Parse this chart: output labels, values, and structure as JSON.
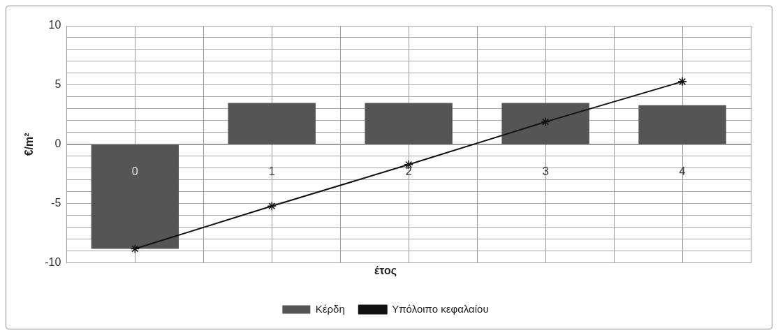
{
  "chart_data": {
    "type": "bar",
    "xlabel": "έτος",
    "ylabel": "€/m²",
    "categories": [
      "0",
      "1",
      "2",
      "3",
      "4"
    ],
    "series": [
      {
        "name": "Κέρδη",
        "color": "#555555",
        "values": [
          -8.8,
          3.5,
          3.5,
          3.5,
          3.3
        ]
      },
      {
        "name": "Υπόλοιπο κεφαλαίου",
        "type": "line",
        "color": "#111111",
        "values": [
          -8.8,
          -5.2,
          -1.7,
          1.9,
          5.3
        ],
        "marker": "cross"
      }
    ],
    "ylim": [
      -10,
      10
    ],
    "yticks": [
      -10,
      {
        "value": -9,
        "label": null
      },
      {
        "value": -8,
        "label": null
      },
      {
        "value": -7,
        "label": null
      },
      {
        "value": -6,
        "label": null
      },
      -5,
      {
        "value": -4,
        "label": null
      },
      {
        "value": -3,
        "label": null
      },
      {
        "value": -2,
        "label": null
      },
      {
        "value": -1,
        "label": null
      },
      0,
      {
        "value": 1,
        "label": null
      },
      {
        "value": 2,
        "label": null
      },
      {
        "value": 3,
        "label": null
      },
      {
        "value": 4,
        "label": null
      },
      5,
      {
        "value": 6,
        "label": null
      },
      {
        "value": 7,
        "label": null
      },
      {
        "value": 8,
        "label": null
      },
      {
        "value": 9,
        "label": null
      },
      10
    ],
    "grid": true,
    "legend": "bottom"
  }
}
